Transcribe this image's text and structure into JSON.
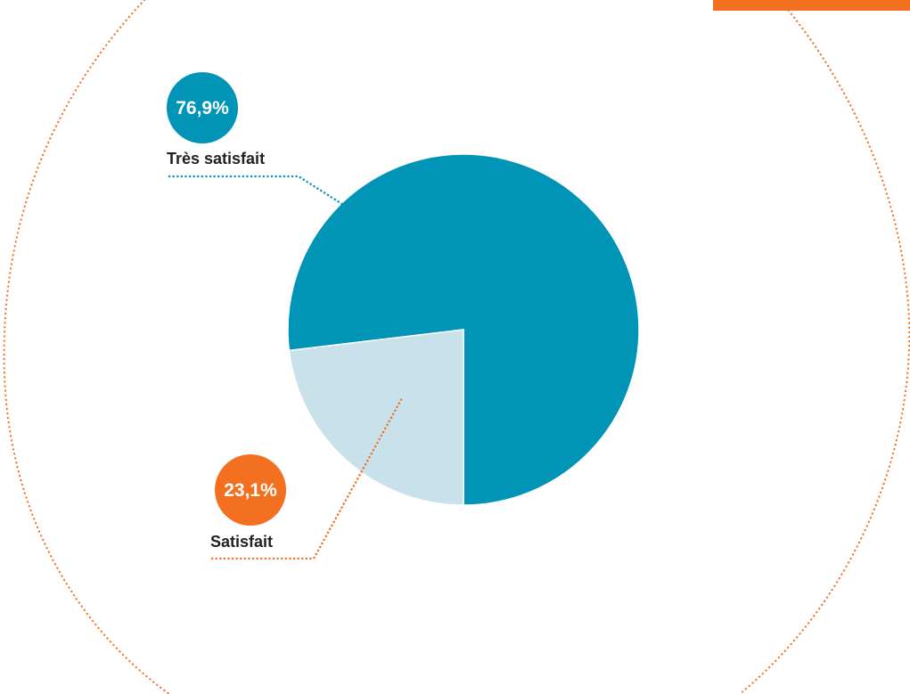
{
  "colors": {
    "primary": "#0094b6",
    "secondary": "#c8e1ea",
    "accent": "#f37021",
    "label_text": "#222222",
    "badge_text": "#ffffff"
  },
  "chart_data": {
    "type": "pie",
    "slices": [
      {
        "label": "Très satisfait",
        "value": 76.9,
        "value_label": "76,9%",
        "color": "#0094b6",
        "badge_color": "#0094b6",
        "leader_color": "#0094b6"
      },
      {
        "label": "Satisfait",
        "value": 23.1,
        "value_label": "23,1%",
        "color": "#c8e1ea",
        "badge_color": "#f37021",
        "leader_color": "#f37021"
      }
    ],
    "start_angle_deg": 180,
    "direction": "counter-clockwise-from-bottom",
    "legend": "none",
    "labels": "outside-with-leader-lines"
  }
}
